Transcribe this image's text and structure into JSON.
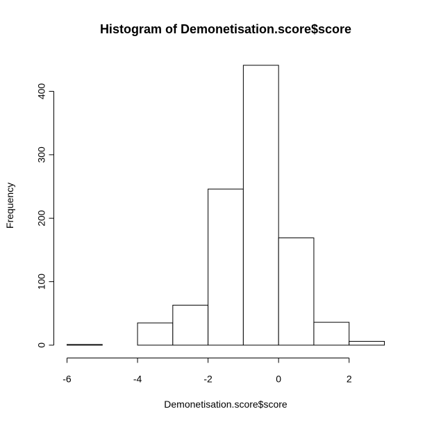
{
  "chart_data": {
    "type": "bar",
    "title": "Histogram of Demonetisation.score$score",
    "xlabel": "Demonetisation.score$score",
    "ylabel": "Frequency",
    "bins": [
      {
        "start": -6,
        "end": -5,
        "count": 1
      },
      {
        "start": -5,
        "end": -4,
        "count": 0
      },
      {
        "start": -4,
        "end": -3,
        "count": 35
      },
      {
        "start": -3,
        "end": -2,
        "count": 63
      },
      {
        "start": -2,
        "end": -1,
        "count": 246
      },
      {
        "start": -1,
        "end": 0,
        "count": 441
      },
      {
        "start": 0,
        "end": 1,
        "count": 169
      },
      {
        "start": 1,
        "end": 2,
        "count": 36
      },
      {
        "start": 2,
        "end": 3,
        "count": 6
      }
    ],
    "xlim": [
      -6,
      3
    ],
    "ylim": [
      0,
      441
    ],
    "x_ticks": [
      -6,
      -4,
      -2,
      0,
      2
    ],
    "y_ticks": [
      0,
      100,
      200,
      300,
      400
    ],
    "grid": false
  }
}
